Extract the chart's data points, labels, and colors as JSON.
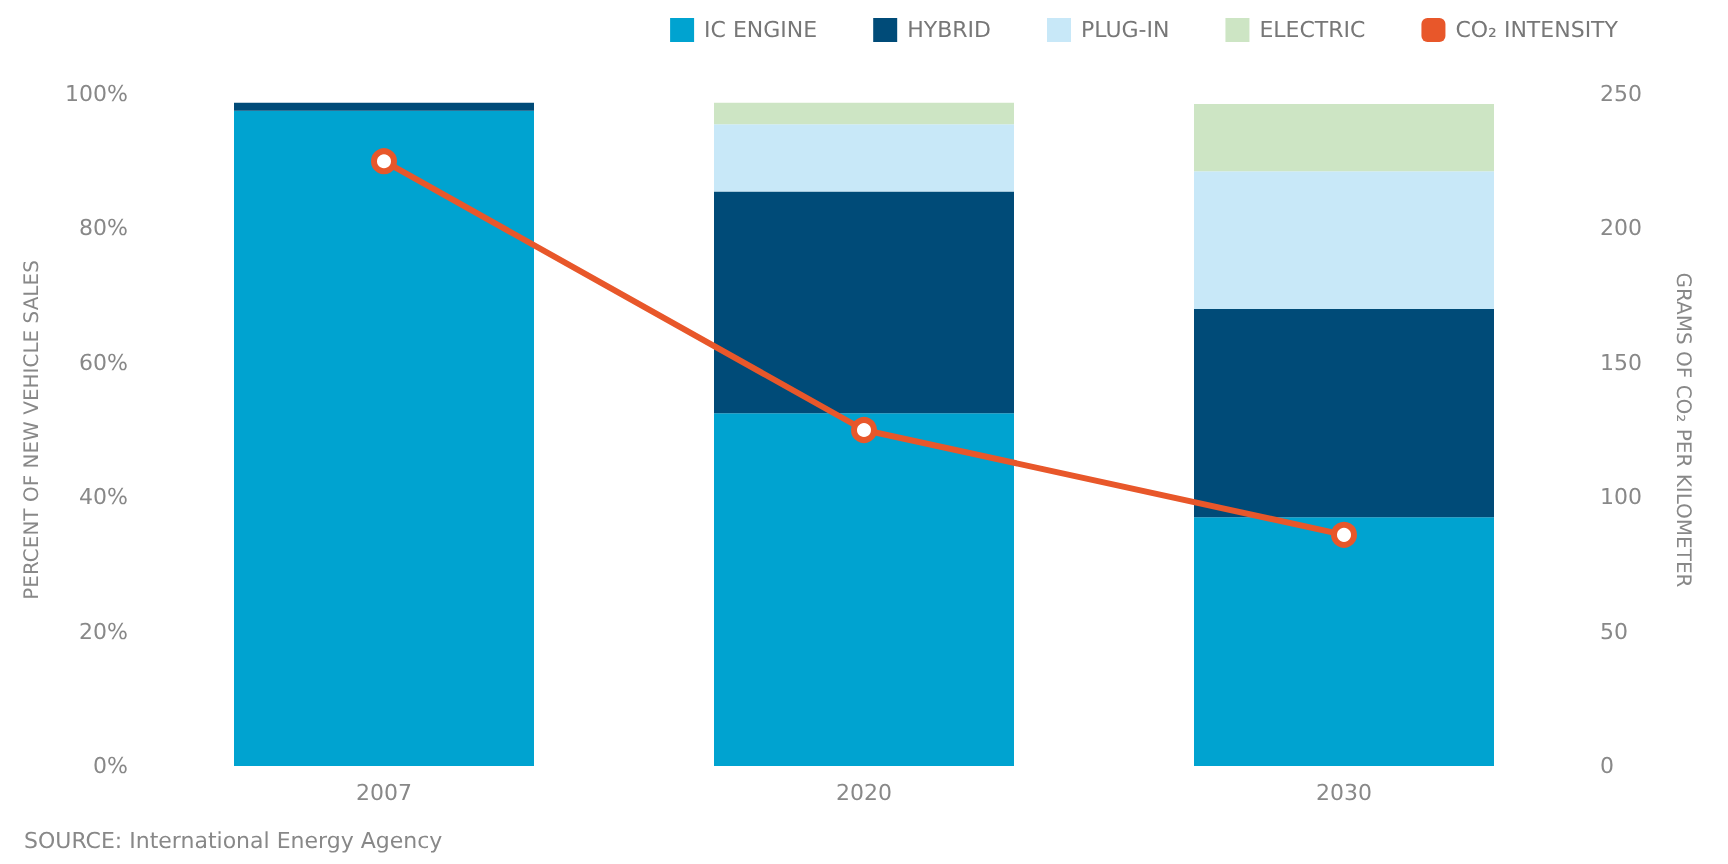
{
  "chart_data": {
    "type": "bar",
    "stacked": true,
    "categories": [
      "2007",
      "2020",
      "2030"
    ],
    "ylabel": "PERCENT OF NEW VEHICLE SALES",
    "y2label": "GRAMS OF CO₂ PER KILOMETER",
    "ylim": [
      0,
      100
    ],
    "yticks": [
      {
        "value": 0,
        "label": "0%"
      },
      {
        "value": 20,
        "label": "20%"
      },
      {
        "value": 40,
        "label": "40%"
      },
      {
        "value": 60,
        "label": "60%"
      },
      {
        "value": 80,
        "label": "80%"
      },
      {
        "value": 100,
        "label": "100%"
      }
    ],
    "y2lim": [
      0,
      250
    ],
    "y2ticks": [
      0,
      50,
      100,
      150,
      200,
      250
    ],
    "series": [
      {
        "name": "IC ENGINE",
        "color": "#00a3d0",
        "values": [
          97.5,
          52.5,
          37
        ]
      },
      {
        "name": "HYBRID",
        "color": "#004b78",
        "values": [
          1.2,
          33,
          31
        ]
      },
      {
        "name": "PLUG-IN",
        "color": "#c8e8f8",
        "values": [
          null,
          10,
          20.5
        ]
      },
      {
        "name": "ELECTRIC",
        "color": "#cde5c4",
        "values": [
          null,
          3.2,
          10
        ]
      },
      {
        "name": "CO₂ INTENSITY",
        "type": "line",
        "axis": "y2",
        "color": "#e8572a",
        "marker": "circle",
        "values": [
          225,
          125,
          86
        ]
      }
    ],
    "annotations": [
      "SOURCE: International Energy Agency"
    ],
    "legend": "top right",
    "grid": false
  }
}
